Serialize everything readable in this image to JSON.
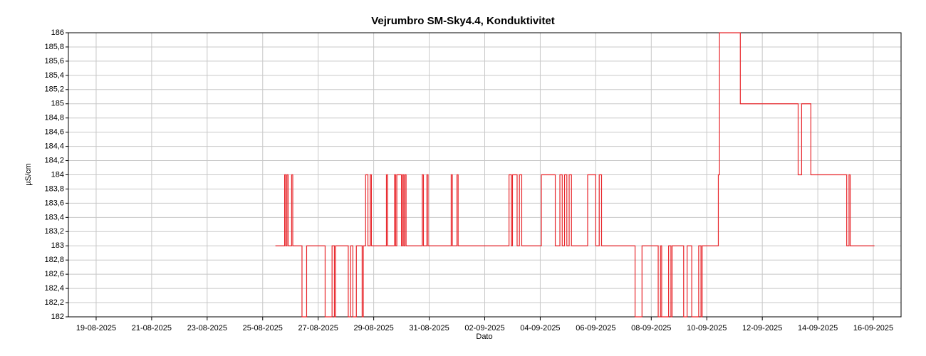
{
  "chart_data": {
    "type": "step-line",
    "title": "Vejrumbro SM-Sky4.4, Konduktivitet",
    "x_label": "Dato",
    "y_label": "µS/cm",
    "xlim": [
      "2025-08-18T00:00",
      "2025-09-17T00:00"
    ],
    "xticks": [
      {
        "value": "2025-08-19",
        "label": "19-08-2025"
      },
      {
        "value": "2025-08-21",
        "label": "21-08-2025"
      },
      {
        "value": "2025-08-23",
        "label": "23-08-2025"
      },
      {
        "value": "2025-08-25",
        "label": "25-08-2025"
      },
      {
        "value": "2025-08-27",
        "label": "27-08-2025"
      },
      {
        "value": "2025-08-29",
        "label": "29-08-2025"
      },
      {
        "value": "2025-08-31",
        "label": "31-08-2025"
      },
      {
        "value": "2025-09-02",
        "label": "02-09-2025"
      },
      {
        "value": "2025-09-04",
        "label": "04-09-2025"
      },
      {
        "value": "2025-09-06",
        "label": "06-09-2025"
      },
      {
        "value": "2025-09-08",
        "label": "08-09-2025"
      },
      {
        "value": "2025-09-10",
        "label": "10-09-2025"
      },
      {
        "value": "2025-09-12",
        "label": "12-09-2025"
      },
      {
        "value": "2025-09-14",
        "label": "14-09-2025"
      },
      {
        "value": "2025-09-16",
        "label": "16-09-2025"
      }
    ],
    "ylim": [
      182,
      186
    ],
    "yticks": [
      182,
      {
        "value": 182.2,
        "label": "182,2"
      },
      {
        "value": 182.4,
        "label": "182,4"
      },
      {
        "value": 182.6,
        "label": "182,6"
      },
      {
        "value": 182.8,
        "label": "182,8"
      },
      183,
      {
        "value": 183.2,
        "label": "183,2"
      },
      {
        "value": 183.4,
        "label": "183,4"
      },
      {
        "value": 183.6,
        "label": "183,6"
      },
      {
        "value": 183.8,
        "label": "183,8"
      },
      184,
      {
        "value": 184.2,
        "label": "184,2"
      },
      {
        "value": 184.4,
        "label": "184,4"
      },
      {
        "value": 184.6,
        "label": "184,6"
      },
      {
        "value": 184.8,
        "label": "184,8"
      },
      185,
      {
        "value": 185.2,
        "label": "185,2"
      },
      {
        "value": 185.4,
        "label": "185,4"
      },
      {
        "value": 185.6,
        "label": "185,6"
      },
      {
        "value": 185.8,
        "label": "185,8"
      },
      186
    ],
    "grid": true,
    "color": "#e8262b",
    "x": [
      "2025-08-25T11:00",
      "2025-08-25T19:00",
      "2025-08-25T20:00",
      "2025-08-25T21:00",
      "2025-08-25T22:00",
      "2025-08-26T01:00",
      "2025-08-26T02:00",
      "2025-08-26T10:00",
      "2025-08-26T14:00",
      "2025-08-27T06:00",
      "2025-08-27T12:00",
      "2025-08-27T14:00",
      "2025-08-27T15:00",
      "2025-08-28T02:00",
      "2025-08-28T04:00",
      "2025-08-28T06:00",
      "2025-08-28T09:00",
      "2025-08-28T14:00",
      "2025-08-28T15:00",
      "2025-08-28T17:00",
      "2025-08-28T19:00",
      "2025-08-28T21:00",
      "2025-08-28T22:00",
      "2025-08-29T11:00",
      "2025-08-29T12:00",
      "2025-08-29T18:00",
      "2025-08-29T19:00",
      "2025-08-29T20:00",
      "2025-08-30T00:00",
      "2025-08-30T01:00",
      "2025-08-30T02:00",
      "2025-08-30T03:00",
      "2025-08-30T04:00",
      "2025-08-30T18:00",
      "2025-08-30T19:00",
      "2025-08-30T22:00",
      "2025-08-30T23:00",
      "2025-08-31T19:00",
      "2025-08-31T20:00",
      "2025-09-01T00:00",
      "2025-09-01T01:00",
      "2025-09-02T21:00",
      "2025-09-02T23:00",
      "2025-09-03T00:00",
      "2025-09-03T04:00",
      "2025-09-03T06:00",
      "2025-09-03T08:00",
      "2025-09-04T01:00",
      "2025-09-04T13:00",
      "2025-09-04T17:00",
      "2025-09-04T19:00",
      "2025-09-04T21:00",
      "2025-09-04T23:00",
      "2025-09-05T01:00",
      "2025-09-05T03:00",
      "2025-09-05T17:00",
      "2025-09-06T00:00",
      "2025-09-06T03:00",
      "2025-09-06T05:00",
      "2025-09-07T10:00",
      "2025-09-07T16:00",
      "2025-09-08T06:00",
      "2025-09-08T08:00",
      "2025-09-08T09:00",
      "2025-09-08T15:00",
      "2025-09-08T17:00",
      "2025-09-08T18:00",
      "2025-09-09T04:00",
      "2025-09-09T07:00",
      "2025-09-09T11:00",
      "2025-09-09T17:00",
      "2025-09-09T19:00",
      "2025-09-09T20:00",
      "2025-09-10T10:00",
      "2025-09-10T11:00",
      "2025-09-11T05:00",
      "2025-09-13T07:00",
      "2025-09-13T10:00",
      "2025-09-13T18:00",
      "2025-09-15T01:00",
      "2025-09-15T03:00",
      "2025-09-15T04:00",
      "2025-09-16T01:00"
    ],
    "values": [
      183,
      184,
      183,
      184,
      183,
      184,
      183,
      182,
      183,
      182,
      183,
      182,
      183,
      182,
      183,
      182,
      183,
      182,
      183,
      184,
      183,
      184,
      183,
      184,
      183,
      184,
      183,
      184,
      183,
      184,
      183,
      184,
      183,
      184,
      183,
      184,
      183,
      184,
      183,
      184,
      183,
      184,
      183,
      184,
      183,
      184,
      183,
      184,
      183,
      184,
      183,
      184,
      183,
      184,
      183,
      184,
      183,
      184,
      183,
      182,
      183,
      182,
      183,
      182,
      183,
      182,
      183,
      182,
      183,
      182,
      183,
      182,
      183,
      184,
      186,
      185,
      184,
      185,
      184,
      183,
      184,
      183,
      183
    ]
  }
}
